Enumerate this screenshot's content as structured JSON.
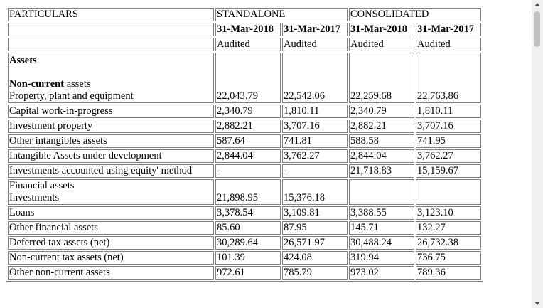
{
  "header": {
    "particulars": "PARTICULARS",
    "standalone": "STANDALONE",
    "consolidated": "CONSOLIDATED",
    "dates": [
      "31-Mar-2018",
      "31-Mar-2017",
      "31-Mar-2018",
      "31-Mar-2017"
    ],
    "audit": [
      "Audited",
      "Audited",
      "Audited",
      "Audited"
    ]
  },
  "assets_heading": "Assets",
  "noncurrent_bold": "Non-current",
  "noncurrent_rest": " assets",
  "rows": [
    {
      "label": "Property, plant and equipment",
      "values": [
        "22,043.79",
        "22,542.06",
        "22,259.68",
        "22,763.86"
      ]
    },
    {
      "label": "Capital work-in-progress",
      "values": [
        "2,340.79",
        "1,810.11",
        "2,340.79",
        "1,810.11"
      ]
    },
    {
      "label": "Investment property",
      "values": [
        "2,882.21",
        "3,707.16",
        "2,882.21",
        "3,707.16"
      ]
    },
    {
      "label": "Other intangibles assets",
      "values": [
        "587.64",
        "741.81",
        "588.58",
        "741.95"
      ]
    },
    {
      "label": "Intangible Assets under development",
      "values": [
        "2,844.04",
        "3,762.27",
        "2,844.04",
        "3,762.27"
      ]
    },
    {
      "label": "Investments accounted using equity' method",
      "values": [
        "-",
        "-",
        "21,718.83",
        "15,159.67"
      ]
    },
    {
      "label_line1": "Financial assets",
      "label": "Investments",
      "values": [
        "21,898.95",
        "15,376.18",
        "",
        ""
      ]
    },
    {
      "label": "Loans",
      "values": [
        "3,378.54",
        "3,109.81",
        "3,388.55",
        "3,123.10"
      ]
    },
    {
      "label": "Other financial assets",
      "values": [
        "85.60",
        "87.95",
        "145.71",
        "132.27"
      ]
    },
    {
      "label": "Deferred tax assets (net)",
      "values": [
        "30,289.64",
        "26,571.97",
        "30,488.24",
        "26,732.38"
      ]
    },
    {
      "label": "Non-current tax assets (net)",
      "values": [
        "101.39",
        "424.08",
        "319.94",
        "736.75"
      ]
    },
    {
      "label": "Other non-current assets",
      "values": [
        "972.61",
        "785.79",
        "973.02",
        "789.36"
      ]
    }
  ],
  "scrollbar": {
    "up_icon": "scroll-up-arrow-icon",
    "down_icon": "scroll-down-arrow-icon"
  }
}
